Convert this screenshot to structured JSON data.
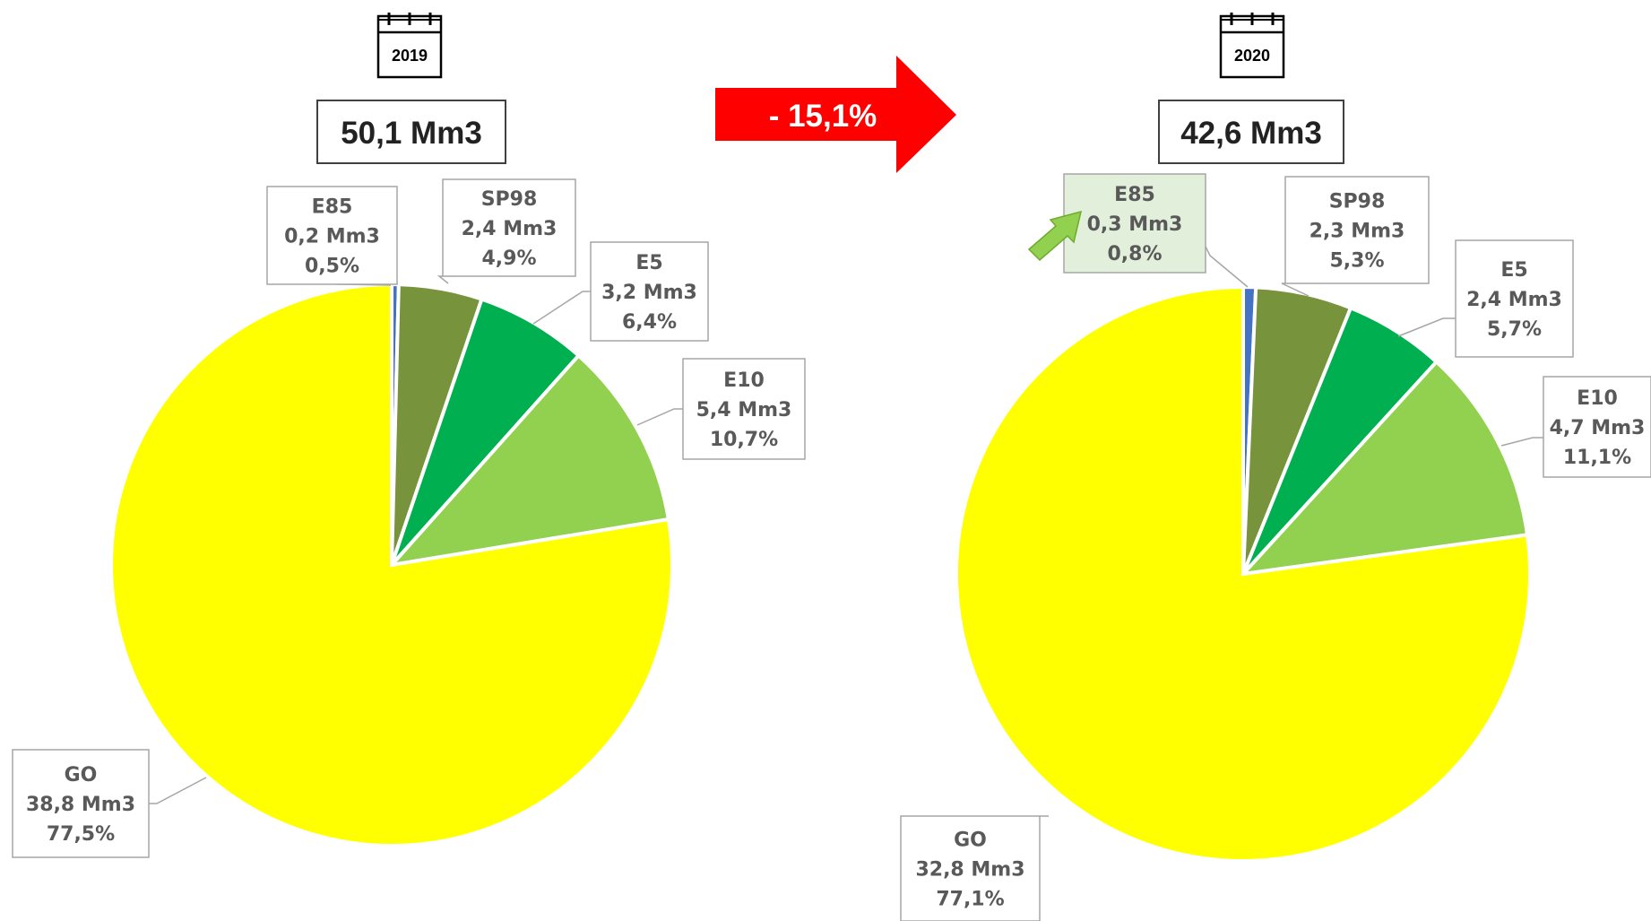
{
  "change": {
    "label": "- 15,1%",
    "color": "#ff0000"
  },
  "chart_data": [
    {
      "type": "pie",
      "year": "2019",
      "total": "50,1 Mm3",
      "slices": [
        {
          "name": "E85",
          "value_label": "0,2 Mm3",
          "pct_label": "0,5%",
          "value": 0.2,
          "percent": 0.5,
          "color": "#4472c4"
        },
        {
          "name": "SP98",
          "value_label": "2,4 Mm3",
          "pct_label": "4,9%",
          "value": 2.4,
          "percent": 4.9,
          "color": "#77933c"
        },
        {
          "name": "E5",
          "value_label": "3,2 Mm3",
          "pct_label": "6,4%",
          "value": 3.2,
          "percent": 6.4,
          "color": "#00b050"
        },
        {
          "name": "E10",
          "value_label": "5,4 Mm3",
          "pct_label": "10,7%",
          "value": 5.4,
          "percent": 10.7,
          "color": "#92d050"
        },
        {
          "name": "GO",
          "value_label": "38,8 Mm3",
          "pct_label": "77,5%",
          "value": 38.8,
          "percent": 77.5,
          "color": "#ffff00"
        }
      ]
    },
    {
      "type": "pie",
      "year": "2020",
      "total": "42,6 Mm3",
      "slices": [
        {
          "name": "E85",
          "value_label": "0,3 Mm3",
          "pct_label": "0,8%",
          "value": 0.3,
          "percent": 0.8,
          "color": "#4472c4",
          "highlight": true
        },
        {
          "name": "SP98",
          "value_label": "2,3 Mm3",
          "pct_label": "5,3%",
          "value": 2.3,
          "percent": 5.3,
          "color": "#77933c"
        },
        {
          "name": "E5",
          "value_label": "2,4 Mm3",
          "pct_label": "5,7%",
          "value": 2.4,
          "percent": 5.7,
          "color": "#00b050"
        },
        {
          "name": "E10",
          "value_label": "4,7 Mm3",
          "pct_label": "11,1%",
          "value": 4.7,
          "percent": 11.1,
          "color": "#92d050"
        },
        {
          "name": "GO",
          "value_label": "32,8 Mm3",
          "pct_label": "77,1%",
          "value": 32.8,
          "percent": 77.1,
          "color": "#ffff00"
        }
      ]
    }
  ]
}
